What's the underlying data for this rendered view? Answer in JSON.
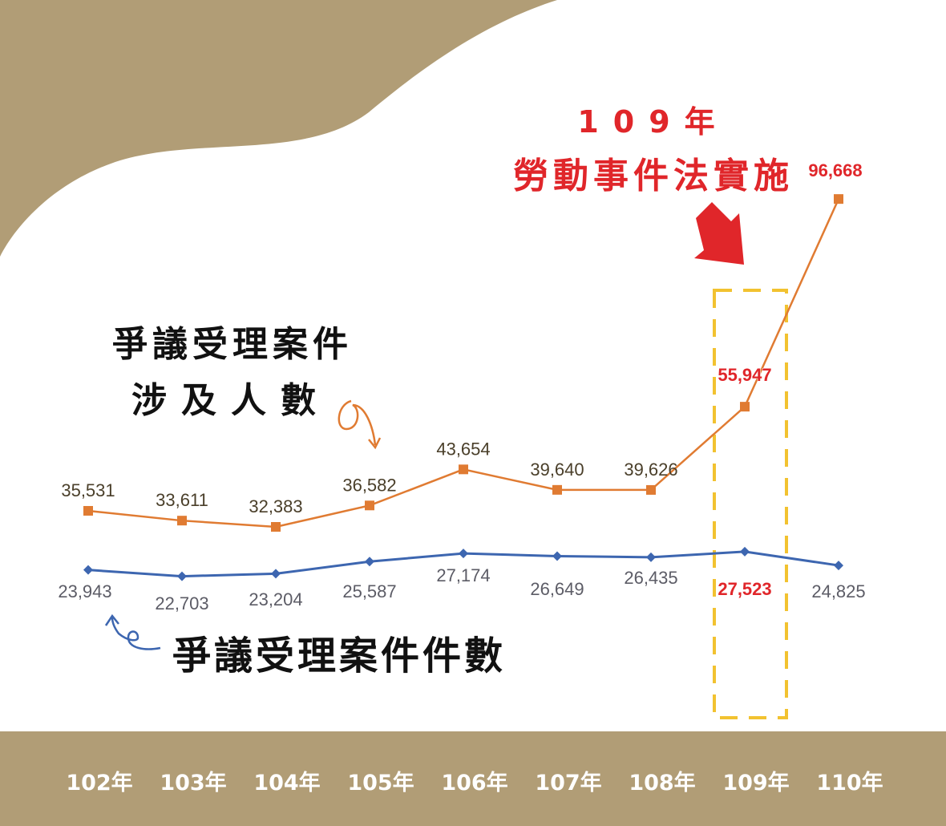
{
  "chart_data": {
    "type": "line",
    "categories": [
      "102年",
      "103年",
      "104年",
      "105年",
      "106年",
      "107年",
      "108年",
      "109年",
      "110年"
    ],
    "series": [
      {
        "name": "爭議受理案件涉及人數",
        "color": "#e07b32",
        "marker": "square",
        "values": [
          35531,
          33611,
          32383,
          36582,
          43654,
          39640,
          39626,
          55947,
          96668
        ],
        "labels": [
          "35,531",
          "33,611",
          "32,383",
          "36,582",
          "43,654",
          "39,640",
          "39,626",
          "55,947",
          "96,668"
        ]
      },
      {
        "name": "爭議受理案件件數",
        "color": "#3d66b0",
        "marker": "diamond",
        "values": [
          23943,
          22703,
          23204,
          25587,
          27174,
          26649,
          26435,
          27523,
          24825
        ],
        "labels": [
          "23,943",
          "22,703",
          "23,204",
          "25,587",
          "27,174",
          "26,649",
          "26,435",
          "27,523",
          "24,825"
        ]
      }
    ],
    "highlight": {
      "category": "109年",
      "label_color": "#e0262a",
      "box_color": "#f2c230"
    },
    "annotation": {
      "year": "109年",
      "text": "勞動事件法實施"
    },
    "grid": false,
    "colors": {
      "band": "#b19d76",
      "label_dark": "#4a3f2a",
      "label_gray": "#5c5c66",
      "axis_text": "#ffffff"
    }
  },
  "annotations": {
    "people_line1": "爭議受理案件",
    "people_line2": "涉及人數",
    "cases": "爭議受理案件件數",
    "law_year": "109年",
    "law_text": "勞動事件法實施"
  }
}
